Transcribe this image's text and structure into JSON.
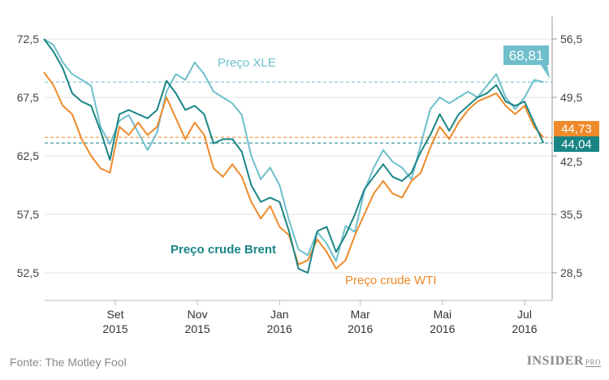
{
  "chart_data": {
    "type": "line",
    "title": "",
    "source": "Fonte: The Motley Fool",
    "logo": "INSIDER PRO",
    "left_axis": {
      "ticks": [
        72.5,
        67.5,
        62.5,
        57.5,
        52.5
      ],
      "tick_labels": [
        "72,5",
        "67,5",
        "62,5",
        "57,5",
        "52,5"
      ],
      "ylim": [
        50,
        75.5
      ]
    },
    "right_axis": {
      "ticks": [
        56.5,
        49.5,
        42.5,
        35.5,
        28.5
      ],
      "tick_labels": [
        "56,5",
        "49,5",
        "42,5",
        "35,5",
        "28,5"
      ],
      "ylim": [
        25,
        60.7
      ]
    },
    "x_ticks": [
      {
        "date": "2015-09-01",
        "label1": "Set",
        "label2": "2015"
      },
      {
        "date": "2015-11-01",
        "label1": "Nov",
        "label2": "2015"
      },
      {
        "date": "2016-01-01",
        "label1": "Jan",
        "label2": "2016"
      },
      {
        "date": "2016-03-01",
        "label1": "Mar",
        "label2": "2016"
      },
      {
        "date": "2016-05-01",
        "label1": "Mai",
        "label2": "2016"
      },
      {
        "date": "2016-07-01",
        "label1": "Jul",
        "label2": "2016"
      }
    ],
    "grid": true,
    "x": [
      "2015-07-10",
      "2015-07-17",
      "2015-07-24",
      "2015-07-31",
      "2015-08-07",
      "2015-08-14",
      "2015-08-21",
      "2015-08-28",
      "2015-09-04",
      "2015-09-11",
      "2015-09-18",
      "2015-09-25",
      "2015-10-02",
      "2015-10-09",
      "2015-10-16",
      "2015-10-23",
      "2015-10-30",
      "2015-11-06",
      "2015-11-13",
      "2015-11-20",
      "2015-11-27",
      "2015-12-04",
      "2015-12-11",
      "2015-12-18",
      "2015-12-25",
      "2016-01-01",
      "2016-01-08",
      "2016-01-15",
      "2016-01-22",
      "2016-01-29",
      "2016-02-05",
      "2016-02-12",
      "2016-02-19",
      "2016-02-26",
      "2016-03-04",
      "2016-03-11",
      "2016-03-18",
      "2016-03-25",
      "2016-04-01",
      "2016-04-08",
      "2016-04-15",
      "2016-04-22",
      "2016-04-29",
      "2016-05-06",
      "2016-05-13",
      "2016-05-20",
      "2016-05-27",
      "2016-06-03",
      "2016-06-10",
      "2016-06-17",
      "2016-06-24",
      "2016-07-01",
      "2016-07-08",
      "2016-07-15"
    ],
    "series": [
      {
        "name": "Preço XLE",
        "axis": "left",
        "color": "#6ebfcb",
        "last_label": "68,81",
        "values": [
          72.5,
          72.0,
          70.5,
          69.5,
          69.0,
          68.5,
          65.0,
          63.5,
          65.5,
          66.0,
          64.5,
          63.0,
          64.5,
          68.0,
          69.5,
          69.0,
          70.5,
          69.5,
          68.0,
          67.5,
          67.0,
          66.0,
          62.5,
          60.5,
          61.5,
          60.0,
          57.0,
          54.5,
          54.0,
          56.0,
          55.0,
          53.5,
          56.5,
          56.0,
          59.5,
          61.5,
          63.0,
          62.0,
          61.5,
          60.5,
          63.5,
          66.5,
          67.5,
          67.0,
          67.5,
          68.0,
          67.5,
          68.5,
          69.5,
          67.5,
          66.5,
          67.5,
          69.0,
          68.81
        ]
      },
      {
        "name": "Preço crude Brent",
        "axis": "right",
        "color": "#1a8585",
        "last_label": "44,04",
        "values": [
          56.5,
          55.0,
          53.0,
          50.0,
          49.0,
          48.5,
          45.5,
          42.0,
          47.5,
          48.0,
          47.5,
          47.0,
          48.0,
          51.5,
          50.0,
          48.0,
          48.5,
          47.5,
          44.0,
          44.5,
          44.5,
          43.0,
          39.0,
          37.0,
          37.5,
          37.0,
          33.5,
          29.0,
          28.5,
          33.5,
          34.0,
          31.0,
          33.0,
          35.5,
          38.5,
          40.0,
          41.5,
          40.0,
          39.5,
          40.5,
          43.0,
          45.0,
          47.5,
          45.5,
          47.5,
          48.5,
          49.5,
          50.0,
          51.0,
          49.0,
          48.5,
          49.0,
          46.5,
          44.04
        ]
      },
      {
        "name": "Preço crude WTI",
        "axis": "right",
        "color": "#ee8a2a",
        "last_label": "44,73",
        "values": [
          52.5,
          51.0,
          48.5,
          47.5,
          44.5,
          42.5,
          41.0,
          40.5,
          46.0,
          45.0,
          46.5,
          45.0,
          46.0,
          49.5,
          47.0,
          44.5,
          46.5,
          45.0,
          41.0,
          40.0,
          41.5,
          40.0,
          37.0,
          35.0,
          36.5,
          34.0,
          33.0,
          29.5,
          30.0,
          32.5,
          31.0,
          29.0,
          30.0,
          33.0,
          35.5,
          38.0,
          39.5,
          38.0,
          37.5,
          39.5,
          40.5,
          43.5,
          46.0,
          44.5,
          46.5,
          48.0,
          49.0,
          49.5,
          50.0,
          48.5,
          47.5,
          48.5,
          46.0,
          44.73
        ]
      }
    ]
  }
}
